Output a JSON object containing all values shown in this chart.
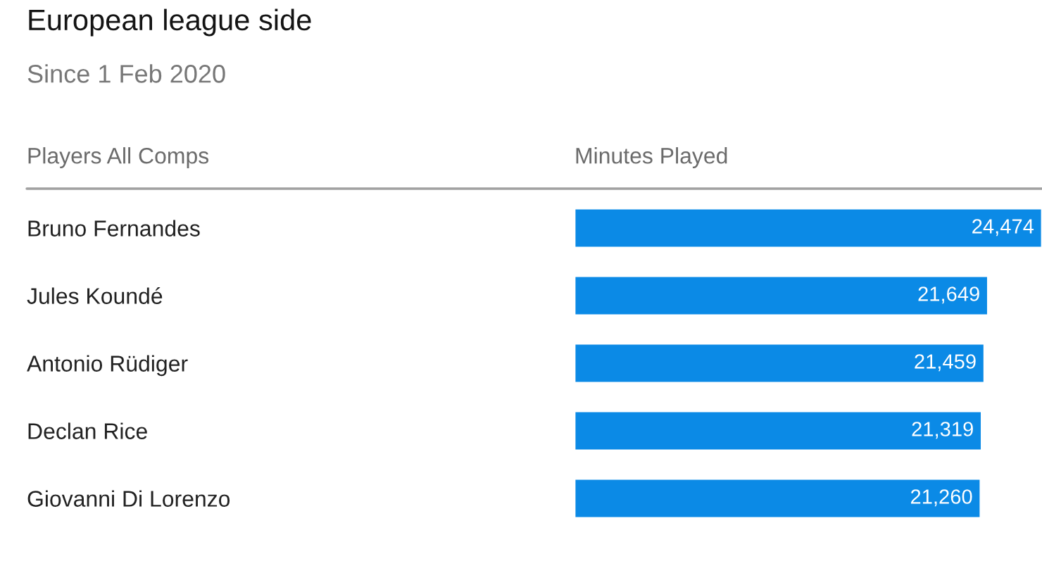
{
  "chart_data": {
    "type": "bar",
    "orientation": "horizontal",
    "title": "European league side",
    "subtitle": "Since 1 Feb 2020",
    "ylabel": "Players All Comps",
    "xlabel": "Minutes Played",
    "categories": [
      "Bruno Fernandes",
      "Jules Koundé",
      "Antonio Rüdiger",
      "Declan Rice",
      "Giovanni Di Lorenzo"
    ],
    "values": [
      24474,
      21649,
      21459,
      21319,
      21260
    ],
    "value_labels": [
      "24,474",
      "21,649",
      "21,459",
      "21,319",
      "21,260"
    ],
    "color": "#0b8ae6",
    "tick_labels": "y"
  }
}
